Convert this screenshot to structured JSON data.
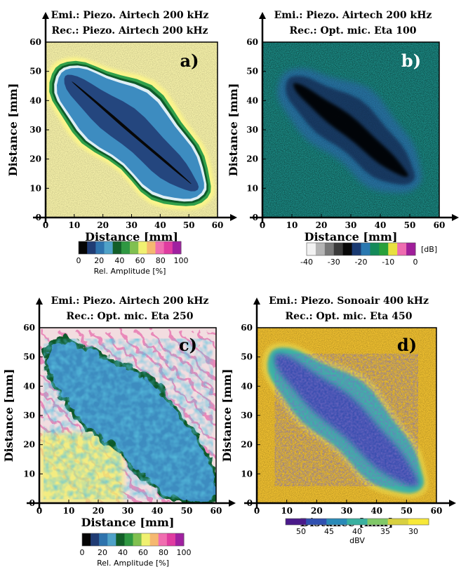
{
  "figure": {
    "axis_title": "Distance [mm]"
  },
  "panels": [
    {
      "letter": "a)",
      "title_line1": "Emi.: Piezo. Airtech 200 kHz",
      "title_line2": "Rec.: Piezo. Airtech 200 kHz",
      "background": "#f5f0a8",
      "colorbar": {
        "colors": [
          "#050505",
          "#203c74",
          "#2e73ad",
          "#4fa2c8",
          "#125e28",
          "#2f9842",
          "#80c050",
          "#f0f070",
          "#f5b870",
          "#f06eb0",
          "#e03ca0",
          "#a020a0"
        ],
        "ticks": [
          "0",
          "20",
          "40",
          "60",
          "80",
          "100"
        ],
        "label": "Rel. Amplitude [%]"
      }
    },
    {
      "letter": "b)",
      "title_line1": "Emi.: Piezo. Airtech 200 kHz",
      "title_line2": "Rec.:  Opt.  mic.  Eta  100",
      "background": "#1c8a84",
      "colorbar": {
        "colors": [
          "#f2f2f2",
          "#b4b4b4",
          "#787878",
          "#3a3a3a",
          "#080808",
          "#1a3a72",
          "#2a78b0",
          "#148a5a",
          "#28a03a",
          "#e8e040",
          "#ee6cb0",
          "#a01e9a"
        ],
        "ticks": [
          "-40",
          "-30",
          "-20",
          "-10",
          "0"
        ],
        "unit": "[dB]"
      }
    },
    {
      "letter": "c)",
      "title_line1": "Emi.: Piezo. Airtech 200 kHz",
      "title_line2": "Rec.:  Opt.  mic.  Eta  250",
      "background": "#f2dde0",
      "colorbar": {
        "colors": [
          "#050505",
          "#203c74",
          "#2e73ad",
          "#4fa2c8",
          "#125e28",
          "#2f9842",
          "#80c050",
          "#f0f070",
          "#f5b870",
          "#f06eb0",
          "#e03ca0",
          "#a020a0"
        ],
        "ticks": [
          "0",
          "20",
          "40",
          "60",
          "80",
          "100"
        ],
        "label": "Rel. Amplitude [%]"
      }
    },
    {
      "letter": "d)",
      "title_line1": "Emi.: Piezo. Sonoair 400 kHz",
      "title_line2": "Rec.:  Opt.  mic.  Eta  450",
      "background": "#f0c030",
      "colorbar": {
        "colors": [
          "#4a1a8a",
          "#3050b0",
          "#2a8ab8",
          "#3ab0a0",
          "#80c868",
          "#d8d040",
          "#f7e838"
        ],
        "ticks": [
          "50",
          "45",
          "40",
          "35",
          "30"
        ],
        "label": "dBV"
      }
    }
  ],
  "chart_data": [
    {
      "type": "heatmap",
      "title": "Emi.: Piezo. Airtech 200 kHz / Rec.: Piezo. Airtech 200 kHz",
      "xlabel": "Distance [mm]",
      "ylabel": "Distance [mm]",
      "xlim": [
        0,
        60
      ],
      "ylim": [
        0,
        60
      ],
      "x_ticks": [
        0,
        10,
        20,
        30,
        40,
        50,
        60
      ],
      "y_ticks": [
        0,
        10,
        20,
        30,
        40,
        50,
        60
      ],
      "colorbar_range": [
        0,
        100
      ],
      "colorbar_label": "Rel. Amplitude [%]",
      "defect_region": {
        "from": [
          5,
          50
        ],
        "to": [
          55,
          8
        ],
        "value_range_pct": [
          0,
          40
        ],
        "background_pct": 70
      }
    },
    {
      "type": "heatmap",
      "title": "Emi.: Piezo. Airtech 200 kHz / Rec.: Opt. mic. Eta 100",
      "xlabel": "Distance [mm]",
      "ylabel": "Distance [mm]",
      "xlim": [
        0,
        60
      ],
      "ylim": [
        0,
        60
      ],
      "x_ticks": [
        0,
        10,
        20,
        30,
        40,
        50,
        60
      ],
      "y_ticks": [
        0,
        10,
        20,
        30,
        40,
        50,
        60
      ],
      "colorbar_range": [
        -45,
        0
      ],
      "colorbar_unit": "[dB]",
      "defect_region": {
        "from": [
          8,
          48
        ],
        "to": [
          52,
          12
        ],
        "value_range_db": [
          -35,
          -25
        ],
        "background_db": -17
      }
    },
    {
      "type": "heatmap",
      "title": "Emi.: Piezo. Airtech 200 kHz / Rec.: Opt. mic. Eta 250",
      "xlabel": "Distance [mm]",
      "ylabel": "Distance [mm]",
      "xlim": [
        0,
        60
      ],
      "ylim": [
        0,
        60
      ],
      "x_ticks": [
        0,
        10,
        20,
        30,
        40,
        50,
        60
      ],
      "y_ticks": [
        0,
        10,
        20,
        30,
        40,
        50,
        60
      ],
      "colorbar_range": [
        0,
        100
      ],
      "colorbar_label": "Rel. Amplitude [%]",
      "defect_region": {
        "from": [
          3,
          55
        ],
        "to": [
          58,
          3
        ],
        "value_range_pct": [
          15,
          40
        ],
        "background_pct": 70
      }
    },
    {
      "type": "heatmap",
      "title": "Emi.: Piezo. Sonoair 400 kHz / Rec.: Opt. mic. Eta 450",
      "xlabel": "Distance [mm]",
      "ylabel": "Distance [mm]",
      "xlim": [
        0,
        60
      ],
      "ylim": [
        0,
        60
      ],
      "x_ticks": [
        0,
        10,
        20,
        30,
        40,
        50,
        60
      ],
      "y_ticks": [
        0,
        10,
        20,
        30,
        40,
        50,
        60
      ],
      "colorbar_range": [
        50,
        30
      ],
      "colorbar_label": "dBV",
      "defect_region": {
        "from": [
          5,
          52
        ],
        "to": [
          55,
          5
        ],
        "value_range_dbv": [
          45,
          50
        ],
        "background_dbv": 33
      }
    }
  ]
}
